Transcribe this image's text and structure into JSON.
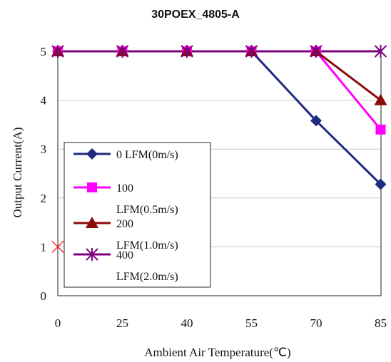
{
  "chart_data": {
    "type": "line",
    "title": "30POEX_4805-A",
    "xlabel": "Ambient Air Temperature(℃)",
    "ylabel": "Output Current(A)",
    "categories": [
      "0",
      "25",
      "40",
      "55",
      "70",
      "85"
    ],
    "ylim": [
      0,
      5
    ],
    "yticks": [
      "0",
      "1",
      "2",
      "3",
      "4",
      "5"
    ],
    "grid": "horizontal",
    "legend_position": "left-center",
    "series": [
      {
        "name": "0 LFM(0m/s)",
        "values": [
          5,
          5,
          5,
          5,
          3.58,
          2.28
        ],
        "color": "#1f2a80",
        "marker": "diamond"
      },
      {
        "name": "100 LFM(0.5m/s)",
        "values": [
          5,
          5,
          5,
          5,
          5,
          3.4
        ],
        "color": "#ff00ff",
        "marker": "square"
      },
      {
        "name": "200 LFM(1.0m/s)",
        "values": [
          5,
          5,
          5,
          5,
          5,
          4.0
        ],
        "color": "#8b0a0a",
        "marker": "triangle"
      },
      {
        "name": "400 LFM(2.0m/s)",
        "values": [
          5,
          5,
          5,
          5,
          5,
          5
        ],
        "color": "#800080",
        "marker": "asterisk"
      }
    ],
    "extra_markers": [
      {
        "x": "0",
        "y": 1,
        "marker": "x",
        "color": "#ff2a2a"
      }
    ],
    "legend_lines": [
      [
        "0 LFM(0m/s)"
      ],
      [
        "100",
        "LFM(0.5m/s)"
      ],
      [
        "200",
        "LFM(1.0m/s)"
      ],
      [
        "400",
        "LFM(2.0m/s)"
      ]
    ]
  }
}
